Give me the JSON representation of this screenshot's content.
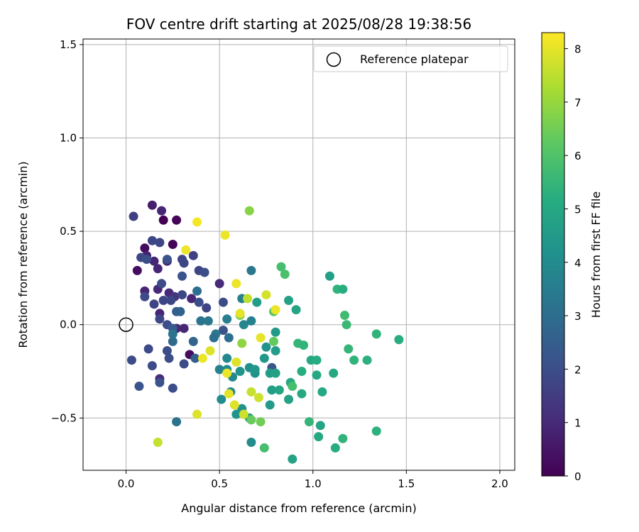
{
  "chart_data": {
    "type": "scatter",
    "title": "FOV centre drift starting at 2025/08/28 19:38:56",
    "xlabel": "Angular distance from reference (arcmin)",
    "ylabel": "Rotation from reference (arcmin)",
    "xlim": [
      -0.23,
      2.08
    ],
    "ylim": [
      -0.78,
      1.53
    ],
    "xticks": [
      0.0,
      0.5,
      1.0,
      1.5,
      2.0
    ],
    "xtick_labels": [
      "0.0",
      "0.5",
      "1.0",
      "1.5",
      "2.0"
    ],
    "yticks": [
      -0.5,
      0.0,
      0.5,
      1.0,
      1.5
    ],
    "ytick_labels": [
      "−0.5",
      "0.0",
      "0.5",
      "1.0",
      "1.5"
    ],
    "grid": true,
    "legend": {
      "position": "top-right",
      "entries": [
        "Reference platepar"
      ]
    },
    "reference_point": {
      "x": 0.0,
      "y": 0.0
    },
    "colorbar": {
      "label": "Hours from first FF file",
      "colormap": "viridis",
      "range": [
        0,
        8.3
      ],
      "ticks": [
        0,
        1,
        2,
        3,
        4,
        5,
        6,
        7,
        8
      ],
      "tick_labels": [
        "0",
        "1",
        "2",
        "3",
        "4",
        "5",
        "6",
        "7",
        "8"
      ]
    },
    "points": [
      [
        0.2,
        0.56,
        0.0
      ],
      [
        0.27,
        0.56,
        0.1
      ],
      [
        0.25,
        0.43,
        0.1
      ],
      [
        0.1,
        0.41,
        0.3
      ],
      [
        0.06,
        0.29,
        0.3
      ],
      [
        0.34,
        -0.16,
        0.3
      ],
      [
        0.14,
        0.64,
        0.7
      ],
      [
        0.19,
        0.61,
        0.9
      ],
      [
        0.17,
        0.3,
        0.9
      ],
      [
        0.11,
        0.37,
        0.8
      ],
      [
        0.15,
        0.34,
        0.9
      ],
      [
        0.22,
        0.34,
        0.8
      ],
      [
        0.1,
        0.18,
        0.9
      ],
      [
        0.17,
        0.19,
        1.0
      ],
      [
        0.23,
        0.17,
        1.0
      ],
      [
        0.35,
        0.14,
        0.9
      ],
      [
        0.5,
        0.22,
        1.0
      ],
      [
        0.27,
        -0.02,
        0.9
      ],
      [
        0.31,
        -0.02,
        0.9
      ],
      [
        0.18,
        0.06,
        0.9
      ],
      [
        0.18,
        -0.29,
        1.0
      ],
      [
        0.26,
        0.15,
        1.3
      ],
      [
        0.04,
        0.58,
        1.6
      ],
      [
        0.14,
        0.45,
        1.8
      ],
      [
        0.18,
        0.44,
        1.8
      ],
      [
        0.08,
        0.36,
        1.8
      ],
      [
        0.3,
        0.35,
        1.7
      ],
      [
        0.36,
        0.37,
        1.6
      ],
      [
        0.11,
        0.35,
        2.0
      ],
      [
        0.19,
        0.22,
        1.9
      ],
      [
        0.31,
        0.33,
        1.8
      ],
      [
        0.39,
        0.29,
        1.7
      ],
      [
        0.42,
        0.28,
        2.0
      ],
      [
        0.3,
        0.26,
        2.2
      ],
      [
        0.22,
        0.35,
        2.1
      ],
      [
        0.24,
        0.13,
        1.8
      ],
      [
        0.15,
        0.11,
        1.7
      ],
      [
        0.2,
        0.13,
        1.8
      ],
      [
        0.1,
        0.15,
        1.9
      ],
      [
        0.3,
        0.16,
        1.8
      ],
      [
        0.43,
        0.09,
        1.7
      ],
      [
        0.39,
        0.12,
        2.0
      ],
      [
        0.18,
        0.03,
        1.8
      ],
      [
        0.22,
        0.0,
        2.0
      ],
      [
        0.52,
        0.12,
        1.9
      ],
      [
        0.27,
        0.07,
        2.5
      ],
      [
        0.03,
        -0.19,
        1.9
      ],
      [
        0.12,
        -0.13,
        1.9
      ],
      [
        0.14,
        -0.22,
        1.9
      ],
      [
        0.22,
        -0.14,
        2.0
      ],
      [
        0.23,
        -0.18,
        2.0
      ],
      [
        0.31,
        -0.21,
        1.9
      ],
      [
        0.25,
        -0.34,
        2.0
      ],
      [
        0.07,
        -0.33,
        2.2
      ],
      [
        0.18,
        -0.31,
        2.1
      ],
      [
        0.52,
        -0.03,
        2.1
      ],
      [
        0.78,
        -0.23,
        2.3
      ],
      [
        0.25,
        -0.02,
        2.4
      ],
      [
        0.29,
        0.07,
        2.6
      ],
      [
        0.37,
        -0.18,
        2.5
      ],
      [
        0.36,
        -0.09,
        2.7
      ],
      [
        0.25,
        -0.09,
        2.9
      ],
      [
        0.25,
        -0.05,
        3.2
      ],
      [
        0.4,
        0.02,
        3.2
      ],
      [
        0.44,
        0.02,
        3.3
      ],
      [
        0.38,
        0.18,
        3.0
      ],
      [
        0.54,
        0.03,
        3.5
      ],
      [
        0.55,
        -0.07,
        3.0
      ],
      [
        0.48,
        -0.05,
        3.4
      ],
      [
        0.47,
        -0.07,
        3.0
      ],
      [
        0.67,
        0.29,
        3.3
      ],
      [
        0.62,
        0.14,
        3.6
      ],
      [
        0.67,
        0.02,
        3.6
      ],
      [
        0.63,
        0.0,
        3.8
      ],
      [
        0.27,
        -0.52,
        3.1
      ],
      [
        0.5,
        -0.24,
        3.7
      ],
      [
        0.54,
        -0.18,
        3.9
      ],
      [
        0.54,
        -0.24,
        4.0
      ],
      [
        0.57,
        -0.28,
        3.9
      ],
      [
        0.56,
        -0.36,
        3.9
      ],
      [
        0.51,
        -0.4,
        4.0
      ],
      [
        0.66,
        -0.23,
        4.1
      ],
      [
        0.69,
        -0.26,
        4.2
      ],
      [
        0.62,
        -0.45,
        4.2
      ],
      [
        0.59,
        -0.48,
        4.3
      ],
      [
        0.67,
        -0.63,
        4.0
      ],
      [
        0.61,
        -0.25,
        4.3
      ],
      [
        0.69,
        -0.24,
        4.4
      ],
      [
        0.66,
        -0.5,
        4.5
      ],
      [
        0.7,
        0.12,
        4.6
      ],
      [
        0.74,
        -0.18,
        4.4
      ],
      [
        0.75,
        -0.12,
        4.3
      ],
      [
        0.77,
        -0.26,
        4.6
      ],
      [
        0.77,
        -0.43,
        4.5
      ],
      [
        0.78,
        -0.35,
        4.7
      ],
      [
        0.8,
        -0.04,
        4.5
      ],
      [
        0.8,
        -0.14,
        4.6
      ],
      [
        0.8,
        -0.26,
        4.8
      ],
      [
        0.82,
        -0.35,
        4.9
      ],
      [
        0.87,
        0.13,
        4.8
      ],
      [
        0.87,
        -0.4,
        4.8
      ],
      [
        0.88,
        -0.31,
        5.0
      ],
      [
        0.89,
        -0.72,
        4.8
      ],
      [
        0.91,
        0.08,
        4.9
      ],
      [
        0.94,
        -0.37,
        5.0
      ],
      [
        0.94,
        -0.25,
        5.2
      ],
      [
        0.99,
        -0.19,
        5.0
      ],
      [
        1.02,
        -0.27,
        5.0
      ],
      [
        1.02,
        -0.19,
        5.1
      ],
      [
        1.05,
        -0.36,
        5.0
      ],
      [
        1.04,
        -0.54,
        4.9
      ],
      [
        1.03,
        -0.6,
        5.0
      ],
      [
        1.09,
        0.26,
        4.7
      ],
      [
        1.11,
        -0.26,
        5.0
      ],
      [
        1.12,
        -0.66,
        5.2
      ],
      [
        1.16,
        -0.61,
        5.4
      ],
      [
        1.19,
        -0.13,
        5.5
      ],
      [
        1.22,
        -0.19,
        5.4
      ],
      [
        1.13,
        0.19,
        5.4
      ],
      [
        1.16,
        0.19,
        5.2
      ],
      [
        1.17,
        0.05,
        5.7
      ],
      [
        1.18,
        0.0,
        5.6
      ],
      [
        1.29,
        -0.19,
        5.3
      ],
      [
        1.34,
        -0.05,
        5.4
      ],
      [
        1.34,
        -0.57,
        5.3
      ],
      [
        1.46,
        -0.08,
        5.2
      ],
      [
        0.92,
        -0.1,
        5.5
      ],
      [
        0.95,
        -0.11,
        5.4
      ],
      [
        0.98,
        -0.52,
        5.5
      ],
      [
        0.89,
        -0.33,
        5.8
      ],
      [
        0.83,
        0.31,
        5.8
      ],
      [
        0.85,
        0.27,
        5.9
      ],
      [
        0.72,
        -0.52,
        6.5
      ],
      [
        0.74,
        -0.66,
        5.8
      ],
      [
        0.79,
        0.07,
        6.2
      ],
      [
        0.79,
        -0.09,
        6.3
      ],
      [
        0.67,
        -0.51,
        6.4
      ],
      [
        0.61,
        0.05,
        6.6
      ],
      [
        0.62,
        -0.1,
        6.9
      ],
      [
        0.66,
        0.61,
        6.8
      ],
      [
        0.65,
        0.14,
        7.5
      ],
      [
        0.75,
        0.16,
        7.8
      ],
      [
        0.72,
        -0.07,
        8.0
      ],
      [
        0.67,
        -0.36,
        7.6
      ],
      [
        0.71,
        -0.39,
        7.7
      ],
      [
        0.63,
        -0.48,
        7.7
      ],
      [
        0.58,
        -0.43,
        7.9
      ],
      [
        0.59,
        -0.2,
        7.9
      ],
      [
        0.55,
        -0.37,
        8.0
      ],
      [
        0.54,
        -0.26,
        8.1
      ],
      [
        0.59,
        0.22,
        8.1
      ],
      [
        0.61,
        0.06,
        8.0
      ],
      [
        0.53,
        0.48,
        8.1
      ],
      [
        0.38,
        0.55,
        8.2
      ],
      [
        0.32,
        0.4,
        8.1
      ],
      [
        0.45,
        -0.14,
        7.9
      ],
      [
        0.41,
        -0.18,
        8.1
      ],
      [
        0.38,
        -0.48,
        7.9
      ],
      [
        0.17,
        -0.63,
        7.6
      ],
      [
        0.8,
        0.08,
        8.1
      ]
    ]
  }
}
